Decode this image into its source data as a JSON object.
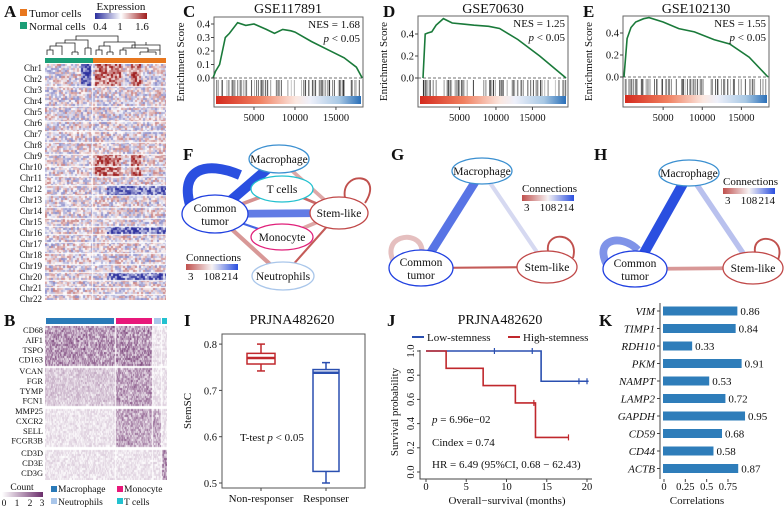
{
  "panel_labels": {
    "A": "A",
    "B": "B",
    "C": "C",
    "D": "D",
    "E": "E",
    "F": "F",
    "G": "G",
    "H": "H",
    "I": "I",
    "J": "J",
    "K": "K"
  },
  "colors": {
    "tumor": "#e8771e",
    "normal": "#1b9e77",
    "expr_low": "#2b2f9e",
    "expr_high": "#9e1b1b",
    "count_high": "#6b2d6b",
    "macrophage": "#2a7ab8",
    "monocyte": "#e8187a",
    "neutrophils": "#a9c6ea",
    "tcells": "#22c1cf",
    "es_line": "#1a7a3a",
    "conn_low": "#c0504d",
    "conn_high": "#2a4fe0",
    "low_stem": "#2a4fb0",
    "high_stem": "#c0282d",
    "bar": "#2e7dba"
  },
  "panel_a": {
    "legend": {
      "tumor": "Tumor cells",
      "normal": "Normal cells"
    },
    "expression": {
      "title": "Expression",
      "ticks": [
        "0.4",
        "1",
        "1.6"
      ]
    },
    "chromosomes": [
      "Chr1",
      "Chr2",
      "Chr3",
      "Chr4",
      "Chr5",
      "Chr6",
      "Chr7",
      "Chr8",
      "Chr9",
      "Chr10",
      "Chr11",
      "Chr12",
      "Chr13",
      "Chr14",
      "Chr15",
      "Chr16",
      "Chr17",
      "Chr18",
      "Chr19",
      "Chr20",
      "Chr21",
      "Chr22"
    ]
  },
  "panel_b": {
    "genes": [
      "CD68",
      "AIF1",
      "TSPO",
      "CD163",
      "VCAN",
      "FGR",
      "TYMP",
      "FCN1",
      "MMP25",
      "CXCR2",
      "SELL",
      "FCGR3B",
      "CD3D",
      "CD3E",
      "CD3G"
    ],
    "count_legend": {
      "title": "Count",
      "ticks": [
        "0",
        "1",
        "2",
        "3"
      ]
    },
    "groups": [
      "Macrophage",
      "Monocyte",
      "Neutrophils",
      "T cells"
    ]
  },
  "networks": [
    {
      "panel": "F",
      "nodes": [
        "Macrophage",
        "T cells",
        "Common tumor",
        "Stem-like",
        "Monocyte",
        "Neutrophils"
      ],
      "edges": [
        [
          "Common tumor",
          "Common tumor",
          214,
          1.0
        ],
        [
          "Macrophage",
          "Common tumor",
          214,
          1.0
        ],
        [
          "Common tumor",
          "Stem-like",
          185,
          0.75
        ],
        [
          "Macrophage",
          "Stem-like",
          60,
          0.3
        ],
        [
          "T cells",
          "Common tumor",
          45,
          0.3
        ],
        [
          "T cells",
          "Stem-like",
          20,
          0.2
        ],
        [
          "Common tumor",
          "Monocyte",
          200,
          0.12
        ],
        [
          "Monocyte",
          "Stem-like",
          60,
          0.3
        ],
        [
          "Common tumor",
          "Neutrophils",
          50,
          0.35
        ],
        [
          "Neutrophils",
          "Stem-like",
          10,
          0.12
        ],
        [
          "Stem-like",
          "Stem-like",
          3,
          0.1
        ]
      ],
      "legend": {
        "title": "Connections",
        "ticks": [
          "3",
          "108",
          "214"
        ]
      }
    },
    {
      "panel": "G",
      "nodes": [
        "Macrophage",
        "Common tumor",
        "Stem-like"
      ],
      "edges": [
        [
          "Macrophage",
          "Common tumor",
          190,
          0.85
        ],
        [
          "Macrophage",
          "Stem-like",
          125,
          0.35
        ],
        [
          "Common tumor",
          "Stem-like",
          10,
          0.12
        ],
        [
          "Common tumor",
          "Common tumor",
          75,
          0.45
        ],
        [
          "Stem-like",
          "Stem-like",
          3,
          0.1
        ]
      ],
      "legend": {
        "title": "Connections",
        "ticks": [
          "3",
          "108",
          "214"
        ]
      }
    },
    {
      "panel": "H",
      "nodes": [
        "Macrophage",
        "Common tumor",
        "Stem-like"
      ],
      "edges": [
        [
          "Macrophage",
          "Common tumor",
          214,
          1.0
        ],
        [
          "Macrophage",
          "Stem-like",
          140,
          0.5
        ],
        [
          "Common tumor",
          "Stem-like",
          50,
          0.3
        ],
        [
          "Common tumor",
          "Common tumor",
          170,
          0.75
        ],
        [
          "Stem-like",
          "Stem-like",
          3,
          0.1
        ]
      ],
      "legend": {
        "title": "Connections",
        "ticks": [
          "3",
          "108",
          "214"
        ]
      }
    }
  ],
  "chart_data": [
    {
      "panel": "C",
      "type": "line",
      "title": "GSE117891",
      "ylabel": "Enrichment Score",
      "nes": "NES = 1.68",
      "pval_p": "p",
      "pval_rest": " < 0.05",
      "xticks": [
        "5000",
        "10000",
        "15000"
      ],
      "xtick_values": [
        5000,
        10000,
        15000
      ],
      "yticks": [
        "0.0",
        "0.1",
        "0.2",
        "0.3",
        "0.4"
      ],
      "ytick_values": [
        0,
        0.1,
        0.2,
        0.3,
        0.4
      ],
      "x": [
        0,
        300,
        800,
        1500,
        2000,
        3000,
        4000,
        5000,
        6500,
        7500,
        8500,
        9500,
        10000,
        12000,
        14000,
        16000,
        17500,
        18200
      ],
      "y": [
        0,
        0.05,
        0.1,
        0.3,
        0.33,
        0.41,
        0.39,
        0.4,
        0.36,
        0.33,
        0.36,
        0.35,
        0.34,
        0.27,
        0.21,
        0.15,
        0.08,
        0
      ]
    },
    {
      "panel": "D",
      "type": "line",
      "title": "GSE70630",
      "ylabel": "Enrichment Score",
      "nes": "NES = 1.25",
      "pval_p": "p",
      "pval_rest": " < 0.05",
      "xticks": [
        "5000",
        "10000",
        "15000"
      ],
      "xtick_values": [
        5000,
        10000,
        15000
      ],
      "yticks": [
        "0.0",
        "0.2",
        "0.4"
      ],
      "ytick_values": [
        0,
        0.2,
        0.4
      ],
      "x": [
        0,
        300,
        700,
        1200,
        1800,
        2800,
        4000,
        5500,
        7000,
        9000,
        10500,
        13000,
        16000,
        19600
      ],
      "y": [
        0,
        0.4,
        0.41,
        0.42,
        0.48,
        0.54,
        0.5,
        0.49,
        0.48,
        0.47,
        0.45,
        0.35,
        0.2,
        0
      ]
    },
    {
      "panel": "E",
      "type": "line",
      "title": "GSE102130",
      "ylabel": "Enrichment Score",
      "nes": "NES = 1.55",
      "pval_p": "p",
      "pval_rest": " < 0.05",
      "xticks": [
        "5000",
        "10000",
        "15000"
      ],
      "xtick_values": [
        5000,
        10000,
        15000
      ],
      "yticks": [
        "0.0",
        "0.2",
        "0.4"
      ],
      "ytick_values": [
        0,
        0.2,
        0.4
      ],
      "x": [
        0,
        400,
        900,
        1500,
        2500,
        3200,
        5000,
        7000,
        9000,
        11500,
        13500,
        16000,
        18400
      ],
      "y": [
        0,
        0.35,
        0.45,
        0.5,
        0.53,
        0.54,
        0.5,
        0.44,
        0.41,
        0.34,
        0.3,
        0.18,
        0
      ]
    },
    {
      "panel": "I",
      "type": "box",
      "title": "PRJNA482620",
      "ylabel": "StemSC",
      "categories": [
        "Non-responser",
        "Responser"
      ],
      "boxes": [
        {
          "min": 0.742,
          "q1": 0.757,
          "median": 0.77,
          "q3": 0.78,
          "max": 0.8
        },
        {
          "min": 0.5,
          "q1": 0.525,
          "median": 0.738,
          "q3": 0.745,
          "max": 0.76
        }
      ],
      "yticks": [
        "0.5",
        "0.6",
        "0.7",
        "0.8"
      ],
      "ytick_values": [
        0.5,
        0.6,
        0.7,
        0.8
      ],
      "annotation_pre": "T-test ",
      "annotation_p": "p",
      "annotation_post": " < 0.05"
    },
    {
      "panel": "J",
      "type": "line",
      "title": "PRJNA482620",
      "xlabel": "Overall−survival (months)",
      "ylabel": "Survival probability",
      "series": [
        {
          "name": "Low-stemness",
          "steps": [
            [
              0,
              1.0
            ],
            [
              14.3,
              0.75
            ],
            [
              20.2,
              0.75
            ]
          ],
          "censored": [
            [
              8.5,
              1.0
            ],
            [
              13.2,
              1.0
            ],
            [
              19.0,
              0.75
            ],
            [
              20.0,
              0.75
            ]
          ]
        },
        {
          "name": "High-stemness",
          "steps": [
            [
              0,
              1.0
            ],
            [
              2.5,
              0.857
            ],
            [
              7.1,
              0.714
            ],
            [
              11.1,
              0.571
            ],
            [
              13.6,
              0.286
            ],
            [
              17.7,
              0.286
            ]
          ],
          "censored": [
            [
              13.4,
              0.571
            ],
            [
              17.7,
              0.286
            ]
          ]
        }
      ],
      "xticks": [
        "0",
        "5",
        "10",
        "15",
        "20"
      ],
      "xtick_values": [
        0,
        5,
        10,
        15,
        20
      ],
      "yticks": [
        "0.0",
        "0.2",
        "0.4",
        "0.6",
        "0.8",
        "1.0"
      ],
      "ytick_values": [
        0,
        0.2,
        0.4,
        0.6,
        0.8,
        1.0
      ],
      "stat_p_pre": "p",
      "stat_p": " = 6.96e−02",
      "stat_cindex": "Cindex = 0.74",
      "stat_hr": "HR = 6.49 (95%CI, 0.68 − 62.43)"
    },
    {
      "panel": "K",
      "type": "bar",
      "orientation": "horizontal",
      "xlabel": "Correlations",
      "categories": [
        "VIM",
        "TIMP1",
        "RDH10",
        "PKM",
        "NAMPT",
        "LAMP2",
        "GAPDH",
        "CD59",
        "CD44",
        "ACTB"
      ],
      "values": [
        0.86,
        0.84,
        0.33,
        0.91,
        0.53,
        0.72,
        0.95,
        0.68,
        0.58,
        0.87
      ],
      "value_labels": [
        "0.86",
        "0.84",
        "0.33",
        "0.91",
        "0.53",
        "0.72",
        "0.95",
        "0.68",
        "0.58",
        "0.87"
      ],
      "xticks": [
        "0",
        "0.25",
        "0.5",
        "0.75"
      ],
      "xtick_values": [
        0,
        0.25,
        0.5,
        0.75
      ]
    }
  ]
}
